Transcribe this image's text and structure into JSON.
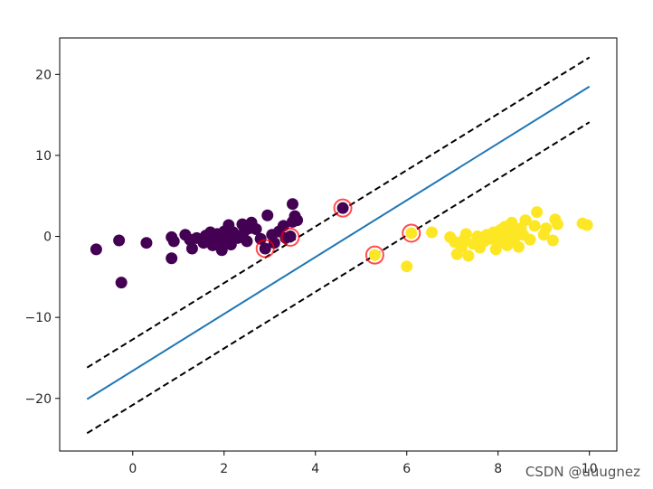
{
  "chart_data": {
    "type": "scatter",
    "xlim": [
      -1.6,
      10.6
    ],
    "ylim": [
      -26.5,
      24.5
    ],
    "xticks": [
      0,
      2,
      4,
      6,
      8,
      10
    ],
    "yticks": [
      -20,
      -10,
      0,
      10,
      20
    ],
    "grid": false,
    "legend": "none",
    "series": [
      {
        "color": "#440154",
        "points": [
          [
            -0.8,
            -1.6
          ],
          [
            -0.3,
            -0.5
          ],
          [
            -0.25,
            -5.7
          ],
          [
            0.3,
            -0.8
          ],
          [
            0.85,
            -0.1
          ],
          [
            0.85,
            -2.7
          ],
          [
            0.9,
            -0.6
          ],
          [
            1.15,
            0.2
          ],
          [
            1.25,
            -0.4
          ],
          [
            1.3,
            -1.5
          ],
          [
            1.4,
            -0.2
          ],
          [
            1.55,
            -0.8
          ],
          [
            1.6,
            0.1
          ],
          [
            1.65,
            -0.6
          ],
          [
            1.7,
            0.5
          ],
          [
            1.75,
            -1.1
          ],
          [
            1.8,
            -0.3
          ],
          [
            1.85,
            0.3
          ],
          [
            1.9,
            -0.9
          ],
          [
            1.95,
            -0.1
          ],
          [
            1.95,
            -1.7
          ],
          [
            2.0,
            0.6
          ],
          [
            2.05,
            -0.4
          ],
          [
            2.1,
            0.2
          ],
          [
            2.1,
            1.4
          ],
          [
            2.15,
            -1.0
          ],
          [
            2.2,
            0.5
          ],
          [
            2.3,
            -0.2
          ],
          [
            2.4,
            1.5
          ],
          [
            2.45,
            0.7
          ],
          [
            2.5,
            -0.6
          ],
          [
            2.55,
            1.0
          ],
          [
            2.6,
            1.7
          ],
          [
            2.7,
            0.9
          ],
          [
            2.8,
            -0.3
          ],
          [
            2.9,
            -1.5
          ],
          [
            2.95,
            2.6
          ],
          [
            3.05,
            0.2
          ],
          [
            3.1,
            -0.8
          ],
          [
            3.2,
            0.6
          ],
          [
            3.3,
            1.3
          ],
          [
            3.35,
            -0.2
          ],
          [
            3.45,
            0.0
          ],
          [
            3.5,
            1.8
          ],
          [
            3.5,
            4.0
          ],
          [
            3.55,
            2.5
          ],
          [
            3.6,
            2.0
          ],
          [
            4.6,
            3.5
          ]
        ]
      },
      {
        "color": "#fde725",
        "points": [
          [
            5.3,
            -2.3
          ],
          [
            6.0,
            -3.7
          ],
          [
            6.1,
            0.4
          ],
          [
            6.55,
            0.5
          ],
          [
            6.95,
            -0.1
          ],
          [
            7.05,
            -0.7
          ],
          [
            7.1,
            -2.2
          ],
          [
            7.2,
            -1.3
          ],
          [
            7.25,
            -0.4
          ],
          [
            7.3,
            0.3
          ],
          [
            7.35,
            -2.4
          ],
          [
            7.45,
            -0.9
          ],
          [
            7.55,
            0.0
          ],
          [
            7.6,
            -1.4
          ],
          [
            7.7,
            -0.6
          ],
          [
            7.75,
            0.2
          ],
          [
            7.85,
            -0.3
          ],
          [
            7.9,
            0.5
          ],
          [
            7.95,
            -1.6
          ],
          [
            8.0,
            -0.9
          ],
          [
            8.05,
            0.8
          ],
          [
            8.1,
            -0.2
          ],
          [
            8.15,
            1.2
          ],
          [
            8.2,
            -1.1
          ],
          [
            8.25,
            0.3
          ],
          [
            8.3,
            1.7
          ],
          [
            8.35,
            -0.5
          ],
          [
            8.4,
            0.6
          ],
          [
            8.45,
            -1.3
          ],
          [
            8.5,
            1.0
          ],
          [
            8.55,
            0.2
          ],
          [
            8.6,
            2.0
          ],
          [
            8.7,
            -0.4
          ],
          [
            8.8,
            1.3
          ],
          [
            8.85,
            3.0
          ],
          [
            9.0,
            0.2
          ],
          [
            9.05,
            1.0
          ],
          [
            9.2,
            -0.5
          ],
          [
            9.25,
            2.1
          ],
          [
            9.3,
            1.5
          ],
          [
            9.85,
            1.6
          ],
          [
            9.95,
            1.4
          ]
        ]
      }
    ],
    "support_vectors": {
      "edge_color": "#ff0000",
      "points": [
        [
          2.9,
          -1.5
        ],
        [
          3.45,
          -0.1
        ],
        [
          4.6,
          3.5
        ],
        [
          5.3,
          -2.3
        ],
        [
          6.1,
          0.4
        ]
      ]
    },
    "lines": [
      {
        "role": "decision_boundary",
        "color": "#1f77b4",
        "style": "solid",
        "x": [
          -1.0,
          10.0
        ],
        "y": [
          -20.1,
          18.5
        ]
      },
      {
        "role": "upper_margin",
        "color": "#000000",
        "style": "dashed",
        "x": [
          -1.0,
          10.0
        ],
        "y": [
          -16.2,
          22.1
        ]
      },
      {
        "role": "lower_margin",
        "color": "#000000",
        "style": "dashed",
        "x": [
          -1.0,
          10.0
        ],
        "y": [
          -24.3,
          14.1
        ]
      }
    ]
  },
  "watermark": "CSDN @uuugnez"
}
